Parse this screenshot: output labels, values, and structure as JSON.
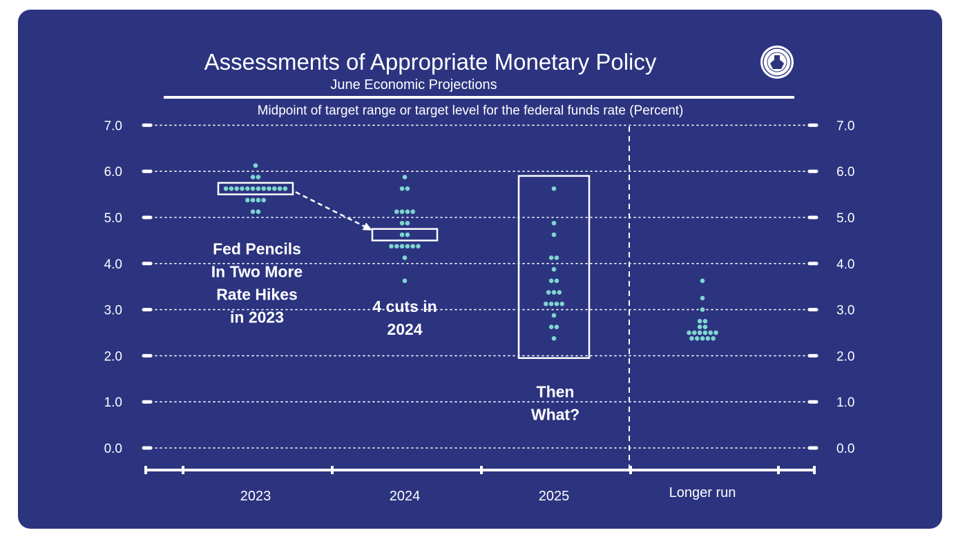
{
  "chart_data": {
    "type": "scatter",
    "title": "Assessments of Appropriate Monetary Policy",
    "subtitle": "June Economic Projections",
    "ylabel": "Midpoint of target range or target level for the federal funds rate (Percent)",
    "ylim": [
      0,
      7
    ],
    "yticks": [
      "7.0",
      "6.0",
      "5.0",
      "4.0",
      "3.0",
      "2.0",
      "1.0",
      "0.0"
    ],
    "grid": true,
    "categories": [
      "2023",
      "2024",
      "2025",
      "Longer run"
    ],
    "dot_color": "#7fd6cf",
    "dots": [
      {
        "category": "2023",
        "values": [
          {
            "y": 6.125,
            "count": 1
          },
          {
            "y": 5.875,
            "count": 2
          },
          {
            "y": 5.625,
            "count": 12
          },
          {
            "y": 5.375,
            "count": 4
          },
          {
            "y": 5.125,
            "count": 2
          }
        ]
      },
      {
        "category": "2024",
        "values": [
          {
            "y": 5.875,
            "count": 1
          },
          {
            "y": 5.625,
            "count": 2
          },
          {
            "y": 5.125,
            "count": 4
          },
          {
            "y": 4.875,
            "count": 2
          },
          {
            "y": 4.625,
            "count": 2
          },
          {
            "y": 4.375,
            "count": 6
          },
          {
            "y": 4.125,
            "count": 1
          },
          {
            "y": 3.625,
            "count": 1
          }
        ]
      },
      {
        "category": "2025",
        "values": [
          {
            "y": 5.625,
            "count": 1
          },
          {
            "y": 4.875,
            "count": 1
          },
          {
            "y": 4.625,
            "count": 1
          },
          {
            "y": 4.125,
            "count": 2
          },
          {
            "y": 3.875,
            "count": 1
          },
          {
            "y": 3.625,
            "count": 2
          },
          {
            "y": 3.375,
            "count": 3
          },
          {
            "y": 3.125,
            "count": 4
          },
          {
            "y": 2.875,
            "count": 1
          },
          {
            "y": 2.625,
            "count": 2
          },
          {
            "y": 2.375,
            "count": 1
          }
        ]
      },
      {
        "category": "Longer run",
        "values": [
          {
            "y": 3.625,
            "count": 1
          },
          {
            "y": 3.25,
            "count": 1
          },
          {
            "y": 3.0,
            "count": 1
          },
          {
            "y": 2.75,
            "count": 2
          },
          {
            "y": 2.625,
            "count": 2
          },
          {
            "y": 2.5,
            "count": 6
          },
          {
            "y": 2.375,
            "count": 5
          }
        ]
      }
    ],
    "highlight_boxes": [
      {
        "category": "2023",
        "y_low": 5.5,
        "y_high": 5.75
      },
      {
        "category": "2024",
        "y_low": 4.5,
        "y_high": 4.75
      },
      {
        "category": "2025",
        "y_low": 1.95,
        "y_high": 5.9
      }
    ],
    "annotations": [
      {
        "category": "2023",
        "lines": [
          "Fed Pencils",
          "In Two More",
          "Rate Hikes",
          "in 2023"
        ],
        "y": 4.2
      },
      {
        "category": "2024",
        "lines": [
          "4 cuts in",
          "2024"
        ],
        "y": 2.95
      },
      {
        "category": "2025",
        "lines": [
          "Then",
          "What?"
        ],
        "y": 1.1
      }
    ],
    "arrow": {
      "from_category": "2023",
      "from_y": 5.55,
      "to_category": "2024",
      "to_y": 4.72
    }
  }
}
